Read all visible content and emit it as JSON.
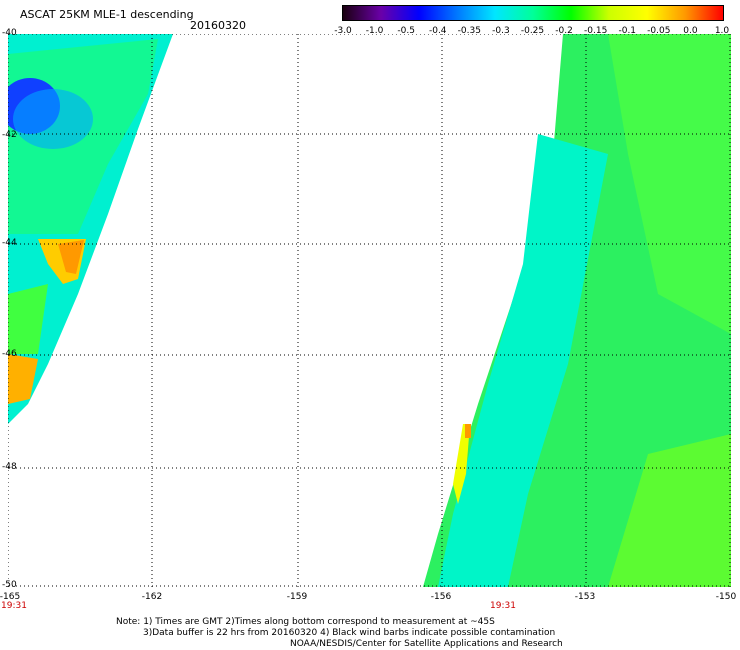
{
  "header": {
    "title": "ASCAT 25KM MLE-1 descending",
    "date": "20160320"
  },
  "colorbar": {
    "ticks": [
      "-3.0",
      "-1.0",
      "-0.5",
      "-0.4",
      "-0.35",
      "-0.3",
      "-0.25",
      "-0.2",
      "-0.15",
      "-0.1",
      "-0.05",
      "0.0",
      "1.0"
    ],
    "colors": [
      "#1a0010",
      "#6a00a8",
      "#0000ff",
      "#0078ff",
      "#00e6ff",
      "#00ff99",
      "#00ff00",
      "#ccff00",
      "#ffff00",
      "#ff9900",
      "#ff0000"
    ]
  },
  "map": {
    "lat_labels": [
      "-40",
      "-42",
      "-44",
      "-46",
      "-48",
      "-50"
    ],
    "lon_labels": [
      "-165",
      "-162",
      "-159",
      "-156",
      "-153",
      "-150"
    ],
    "lon_range": [
      -165,
      -150
    ],
    "lat_range": [
      -50,
      -40
    ],
    "times": [
      {
        "label": "19:31",
        "lon": -165
      },
      {
        "label": "19:31",
        "lon": -155.5
      }
    ]
  },
  "notes": {
    "line1": "Note: 1) Times are GMT 2)Times along bottom correspond to measurement at ~45S",
    "line2": "3)Data buffer is 22 hrs from 20160320 4) Black wind barbs indicate possible contamination",
    "line3": "NOAA/NESDIS/Center for Satellite Applications and Research"
  }
}
